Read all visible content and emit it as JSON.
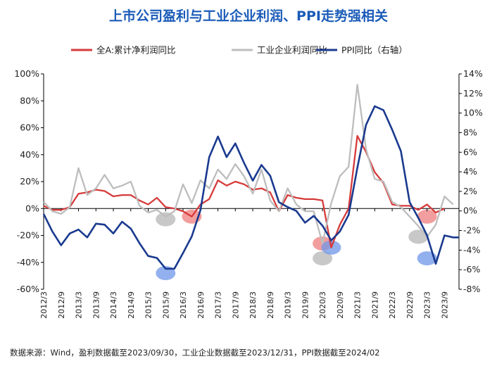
{
  "title": "上市公司盈利与工业企业利润、PPI走势强相关",
  "footnote": "数据来源：Wind，盈利数据截至2023/09/30，工业企业数据截至2023/12/31，PPI数据截至2024/02",
  "chart_data": {
    "type": "line",
    "title": "上市公司盈利与工业企业利润、PPI走势强相关",
    "legend_position": "top",
    "grid": false,
    "x_ticks": [
      "2012/3",
      "2012/9",
      "2013/3",
      "2013/9",
      "2014/3",
      "2014/9",
      "2015/3",
      "2015/9",
      "2016/3",
      "2016/9",
      "2017/3",
      "2017/9",
      "2018/3",
      "2018/9",
      "2019/3",
      "2019/9",
      "2020/3",
      "2020/9",
      "2021/3",
      "2021/9",
      "2022/3",
      "2022/9",
      "2023/3",
      "2023/9"
    ],
    "y_left": {
      "range": [
        -60,
        100
      ],
      "ticks": [
        "100%",
        "80%",
        "60%",
        "40%",
        "20%",
        "0%",
        "-20%",
        "-40%",
        "-60%"
      ]
    },
    "y_right": {
      "range": [
        -8,
        14
      ],
      "ticks": [
        "14%",
        "12%",
        "10%",
        "8%",
        "6%",
        "4%",
        "2%",
        "0%",
        "-2%",
        "-4%",
        "-6%",
        "-8%"
      ]
    },
    "series": [
      {
        "name": "全A:累计净利润同比",
        "color": "#d63a3a",
        "axis": "left",
        "x": [
          "2012/3",
          "2012/6",
          "2012/9",
          "2012/12",
          "2013/3",
          "2013/6",
          "2013/9",
          "2013/12",
          "2014/3",
          "2014/6",
          "2014/9",
          "2014/12",
          "2015/3",
          "2015/6",
          "2015/9",
          "2015/12",
          "2016/3",
          "2016/6",
          "2016/9",
          "2016/12",
          "2017/3",
          "2017/6",
          "2017/9",
          "2017/12",
          "2018/3",
          "2018/6",
          "2018/9",
          "2018/12",
          "2019/3",
          "2019/6",
          "2019/9",
          "2019/12",
          "2020/3",
          "2020/6",
          "2020/9",
          "2020/12",
          "2021/3",
          "2021/6",
          "2021/9",
          "2021/12",
          "2022/3",
          "2022/6",
          "2022/9",
          "2022/12",
          "2023/3",
          "2023/6",
          "2023/9"
        ],
        "values": [
          2,
          -1,
          -1,
          1,
          11,
          12,
          14,
          13,
          9,
          10,
          10,
          6,
          3,
          8,
          1,
          0,
          -2,
          -6,
          3,
          7,
          21,
          17,
          20,
          18,
          14,
          15,
          12,
          -2,
          10,
          8,
          7,
          7,
          6,
          -29,
          -12,
          0,
          54,
          42,
          27,
          19,
          3,
          2,
          2,
          -1,
          3,
          -3,
          0
        ]
      },
      {
        "name": "工业企业利润同比",
        "color": "#bdbdbd",
        "axis": "left",
        "x": [
          "2012/3",
          "2012/6",
          "2012/9",
          "2012/12",
          "2013/3",
          "2013/6",
          "2013/9",
          "2013/12",
          "2014/3",
          "2014/6",
          "2014/9",
          "2014/12",
          "2015/3",
          "2015/6",
          "2015/9",
          "2015/12",
          "2016/3",
          "2016/6",
          "2016/9",
          "2016/12",
          "2017/3",
          "2017/6",
          "2017/9",
          "2017/12",
          "2018/3",
          "2018/6",
          "2018/9",
          "2018/12",
          "2019/3",
          "2019/6",
          "2019/9",
          "2019/12",
          "2020/3",
          "2020/6",
          "2020/9",
          "2020/12",
          "2021/3",
          "2021/6",
          "2021/9",
          "2021/12",
          "2022/3",
          "2022/6",
          "2022/9",
          "2022/12",
          "2023/3",
          "2023/6",
          "2023/9",
          "2023/12"
        ],
        "values": [
          5,
          -2,
          -4,
          1,
          30,
          10,
          15,
          25,
          15,
          17,
          20,
          2,
          -3,
          -1,
          -6,
          -2,
          18,
          4,
          21,
          15,
          29,
          22,
          33,
          24,
          11,
          29,
          6,
          -2,
          15,
          3,
          -2,
          -2,
          -26,
          4,
          24,
          31,
          92,
          44,
          22,
          20,
          5,
          1,
          -6,
          -13,
          -21,
          -12,
          9,
          3
        ]
      },
      {
        "name": "PPI同比（右轴）",
        "color": "#1a3a8f",
        "axis": "right",
        "x": [
          "2012/3",
          "2012/6",
          "2012/9",
          "2012/12",
          "2013/3",
          "2013/6",
          "2013/9",
          "2013/12",
          "2014/3",
          "2014/6",
          "2014/9",
          "2014/12",
          "2015/3",
          "2015/6",
          "2015/9",
          "2015/12",
          "2016/3",
          "2016/6",
          "2016/9",
          "2016/12",
          "2017/3",
          "2017/6",
          "2017/9",
          "2017/12",
          "2018/3",
          "2018/6",
          "2018/9",
          "2018/12",
          "2019/3",
          "2019/6",
          "2019/9",
          "2019/12",
          "2020/3",
          "2020/6",
          "2020/9",
          "2020/12",
          "2021/3",
          "2021/6",
          "2021/9",
          "2021/12",
          "2022/3",
          "2022/6",
          "2022/9",
          "2022/12",
          "2023/3",
          "2023/6",
          "2023/9",
          "2023/12",
          "2024/2"
        ],
        "values": [
          -0.3,
          -2.1,
          -3.5,
          -2.3,
          -1.9,
          -2.7,
          -1.3,
          -1.4,
          -2.3,
          -1.1,
          -1.8,
          -3.3,
          -4.6,
          -4.8,
          -5.9,
          -5.9,
          -4.3,
          -2.6,
          0.1,
          5.5,
          7.6,
          5.5,
          6.9,
          4.9,
          3.1,
          4.7,
          3.6,
          0.9,
          0.4,
          0.0,
          -1.2,
          -0.5,
          -1.5,
          -3.0,
          -2.1,
          -0.4,
          4.4,
          8.8,
          10.7,
          10.3,
          8.3,
          6.1,
          0.9,
          -0.7,
          -2.5,
          -5.4,
          -2.5,
          -2.7,
          -2.7
        ]
      }
    ],
    "highlights": [
      {
        "x": "2015/9",
        "y": -48,
        "axis": "left",
        "color": "#6f96e8"
      },
      {
        "x": "2015/9",
        "y": -8,
        "axis": "left",
        "color": "#b5b5b5"
      },
      {
        "x": "2016/6",
        "y": -6,
        "axis": "left",
        "color": "#ee7e7e"
      },
      {
        "x": "2020/3",
        "y": -26,
        "axis": "left",
        "color": "#ee7e7e"
      },
      {
        "x": "2020/3",
        "y": -37,
        "axis": "left",
        "color": "#b5b5b5"
      },
      {
        "x": "2020/6",
        "y": -29,
        "axis": "left",
        "color": "#6f96e8"
      },
      {
        "x": "2023/3",
        "y": -6,
        "axis": "left",
        "color": "#ee7e7e"
      },
      {
        "x": "2022/12",
        "y": -21,
        "axis": "left",
        "color": "#b5b5b5"
      },
      {
        "x": "2023/3",
        "y": -37,
        "axis": "left",
        "color": "#6f96e8"
      }
    ]
  }
}
